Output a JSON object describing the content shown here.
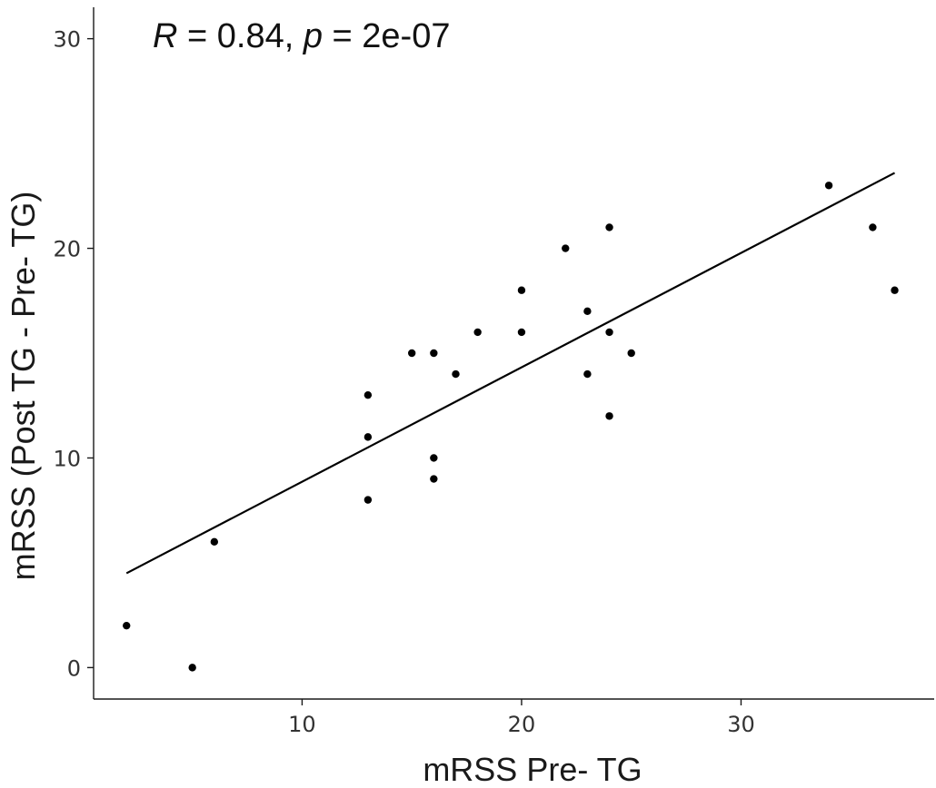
{
  "chart_data": {
    "type": "scatter",
    "title": "",
    "annotation": {
      "r_symbol": "R",
      "r_value": " = 0.84, ",
      "p_symbol": "p",
      "p_value": " = 2e-07"
    },
    "xlabel": "mRSS Pre- TG",
    "ylabel": "mRSS (Post TG - Pre- TG)",
    "xlim": [
      0.5,
      38.8
    ],
    "ylim": [
      -1.5,
      31.5
    ],
    "xticks": [
      10,
      20,
      30
    ],
    "xtick_labels": [
      "10",
      "20",
      "30"
    ],
    "yticks": [
      0,
      10,
      20,
      30
    ],
    "ytick_labels": [
      "0",
      "10",
      "20",
      "30"
    ],
    "grid": false,
    "legend": "none",
    "series": [
      {
        "points": [
          {
            "x": 2,
            "y": 2
          },
          {
            "x": 5,
            "y": 0
          },
          {
            "x": 6,
            "y": 6
          },
          {
            "x": 13,
            "y": 8
          },
          {
            "x": 13,
            "y": 11
          },
          {
            "x": 13,
            "y": 13
          },
          {
            "x": 15,
            "y": 15
          },
          {
            "x": 16,
            "y": 15
          },
          {
            "x": 16,
            "y": 10
          },
          {
            "x": 16,
            "y": 9
          },
          {
            "x": 17,
            "y": 14
          },
          {
            "x": 18,
            "y": 16
          },
          {
            "x": 20,
            "y": 18
          },
          {
            "x": 20,
            "y": 16
          },
          {
            "x": 22,
            "y": 20
          },
          {
            "x": 23,
            "y": 17
          },
          {
            "x": 23,
            "y": 14
          },
          {
            "x": 24,
            "y": 21
          },
          {
            "x": 24,
            "y": 16
          },
          {
            "x": 24,
            "y": 12
          },
          {
            "x": 25,
            "y": 15
          },
          {
            "x": 34,
            "y": 23
          },
          {
            "x": 36,
            "y": 21
          },
          {
            "x": 37,
            "y": 18
          }
        ]
      }
    ],
    "fit_line": {
      "x": [
        2,
        37
      ],
      "y": [
        4.5,
        23.6
      ]
    },
    "colors": {
      "points": "#000000",
      "line": "#000000"
    }
  }
}
